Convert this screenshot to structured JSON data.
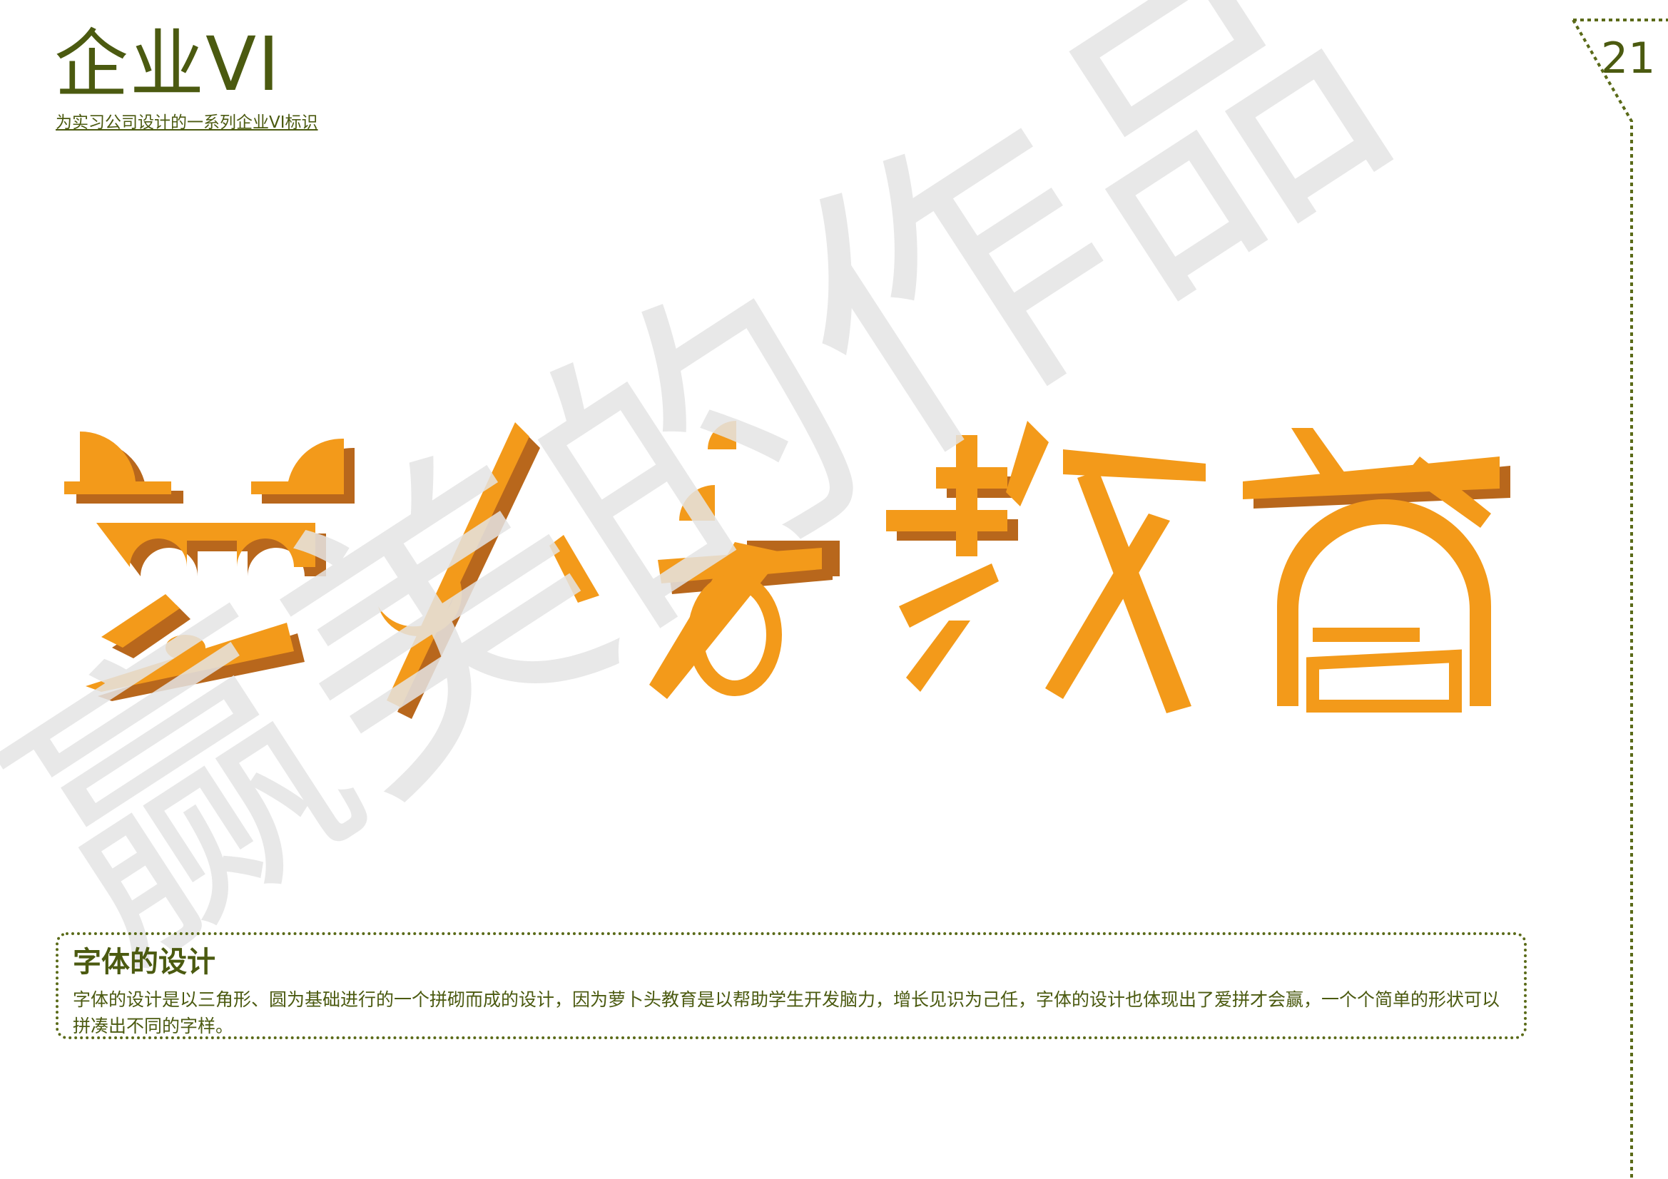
{
  "header": {
    "title": "企业VI",
    "subtitle": "为实习公司设计的一系列企业VI标识"
  },
  "page_number": "21",
  "logo": {
    "text": "萝卜头教育",
    "colors": {
      "fill": "#f39a1a",
      "shadow": "#b8671c"
    }
  },
  "watermark": {
    "text": "赢美的作品",
    "color": "#e4e4e4"
  },
  "description": {
    "heading": "字体的设计",
    "body": "字体的设计是以三角形、圆为基础进行的一个拼砌而成的设计，因为萝卜头教育是以帮助学生开发脑力，增长见识为己任，字体的设计也体现出了爱拼才会赢，一个个简单的形状可以拼凑出不同的字样。"
  },
  "colors": {
    "accent": "#4b5a10",
    "frame": "#5a6a18"
  }
}
